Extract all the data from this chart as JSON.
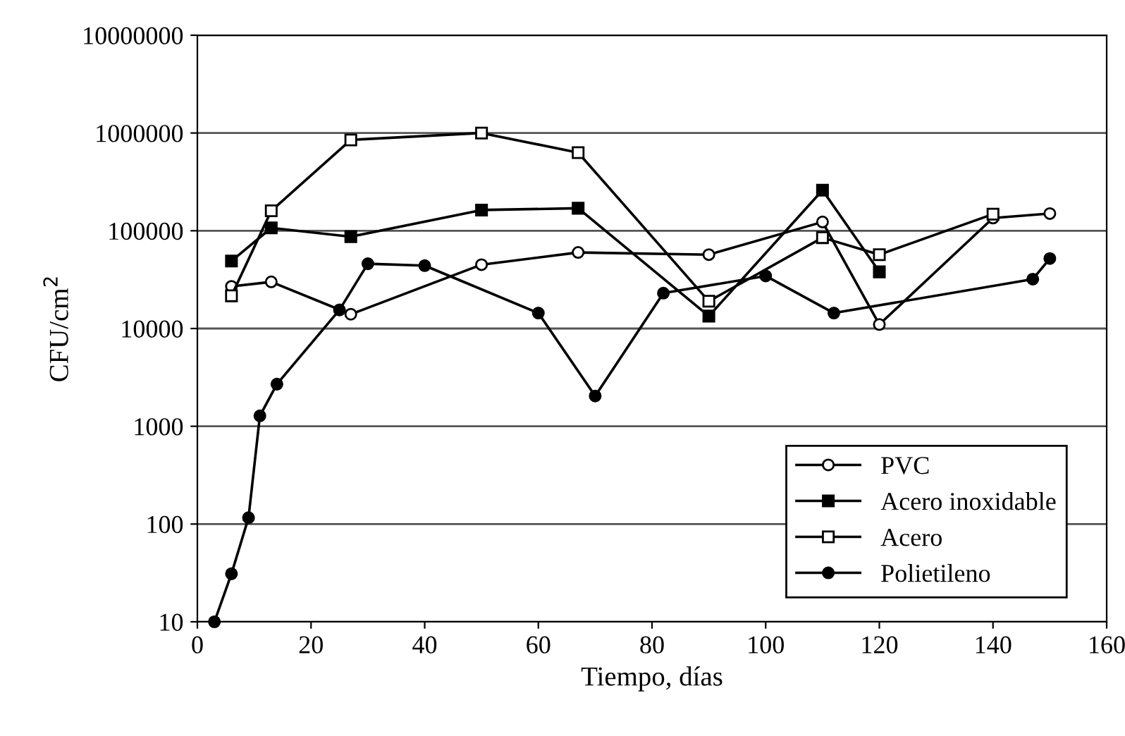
{
  "chart_data": {
    "type": "line",
    "xlabel": "Tiempo, días",
    "ylabel": "CFU/cm$^{2}$",
    "log": "y",
    "grid": "y",
    "legend": "bottom right",
    "xlim": [
      0,
      160
    ],
    "xticks": [
      0,
      20,
      40,
      60,
      80,
      100,
      120,
      140,
      160
    ],
    "ylim": [
      10,
      10000000
    ],
    "yticks": [
      10,
      100,
      1000,
      10000,
      100000,
      1000000,
      10000000
    ],
    "series": [
      {
        "name": "PVC",
        "color": "#000000",
        "marker": "circle",
        "x": [
          6,
          13,
          27,
          50,
          67,
          90,
          110,
          120,
          140,
          150
        ],
        "values": [
          27000,
          30000,
          14000,
          45000,
          60000,
          57000,
          123000,
          11000,
          135000,
          150000
        ]
      },
      {
        "name": "Acero inoxidable",
        "color": "#000000",
        "marker": "square",
        "x": [
          6,
          13,
          27,
          50,
          67,
          90,
          110,
          120
        ],
        "values": [
          49000,
          107000,
          87000,
          163000,
          170000,
          13400,
          260000,
          38000
        ]
      },
      {
        "name": "Acero",
        "color": "#000000",
        "marker": "square",
        "x": [
          6,
          13,
          27,
          50,
          67,
          90,
          110,
          120,
          140
        ],
        "values": [
          21600,
          160000,
          850000,
          1000000,
          630000,
          19000,
          85000,
          57000,
          148000
        ]
      },
      {
        "name": "Polietileno",
        "color": "#000000",
        "marker": "circle",
        "x": [
          3,
          6,
          9,
          11,
          14,
          25,
          30,
          40,
          60,
          70,
          82,
          100,
          112,
          147,
          150
        ],
        "values": [
          10,
          31,
          116,
          1280,
          2700,
          15500,
          46000,
          44000,
          14400,
          2040,
          23000,
          34500,
          14400,
          32000,
          52000
        ]
      }
    ]
  }
}
